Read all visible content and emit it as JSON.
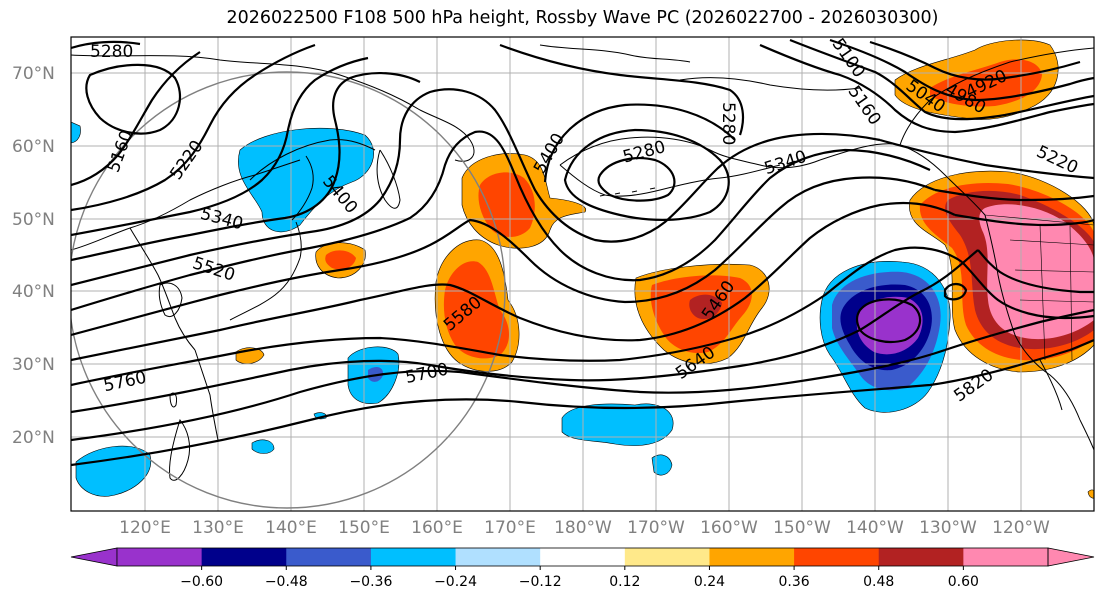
{
  "title": "2026022500 F108 500 hPa height, Rossby Wave PC (2026022700 - 2026030300)",
  "lat_labels": [
    "70°N",
    "60°N",
    "50°N",
    "40°N",
    "30°N",
    "20°N"
  ],
  "lon_labels": [
    "120°E",
    "130°E",
    "140°E",
    "150°E",
    "160°E",
    "170°E",
    "180°W",
    "170°W",
    "160°W",
    "150°W",
    "140°W",
    "130°W",
    "120°W"
  ],
  "contour_labels": [
    "5280",
    "5160",
    "5220",
    "5340",
    "5400",
    "5520",
    "5580",
    "5760",
    "5700",
    "5400",
    "5280",
    "5280",
    "5340",
    "5100",
    "5160",
    "5040",
    "4980",
    "4920",
    "5220",
    "5460",
    "5640",
    "5820"
  ],
  "colorbar": {
    "ticks": [
      "−0.60",
      "−0.48",
      "−0.36",
      "−0.24",
      "−0.12",
      "0.12",
      "0.24",
      "0.36",
      "0.48",
      "0.60"
    ],
    "colors": [
      "#9932cc",
      "#00008b",
      "#3a5bcc",
      "#00bfff",
      "#b0e0ff",
      "#ffffff",
      "#ffe98a",
      "#ffa500",
      "#ff4500",
      "#b22222",
      "#ff88b0"
    ]
  }
}
